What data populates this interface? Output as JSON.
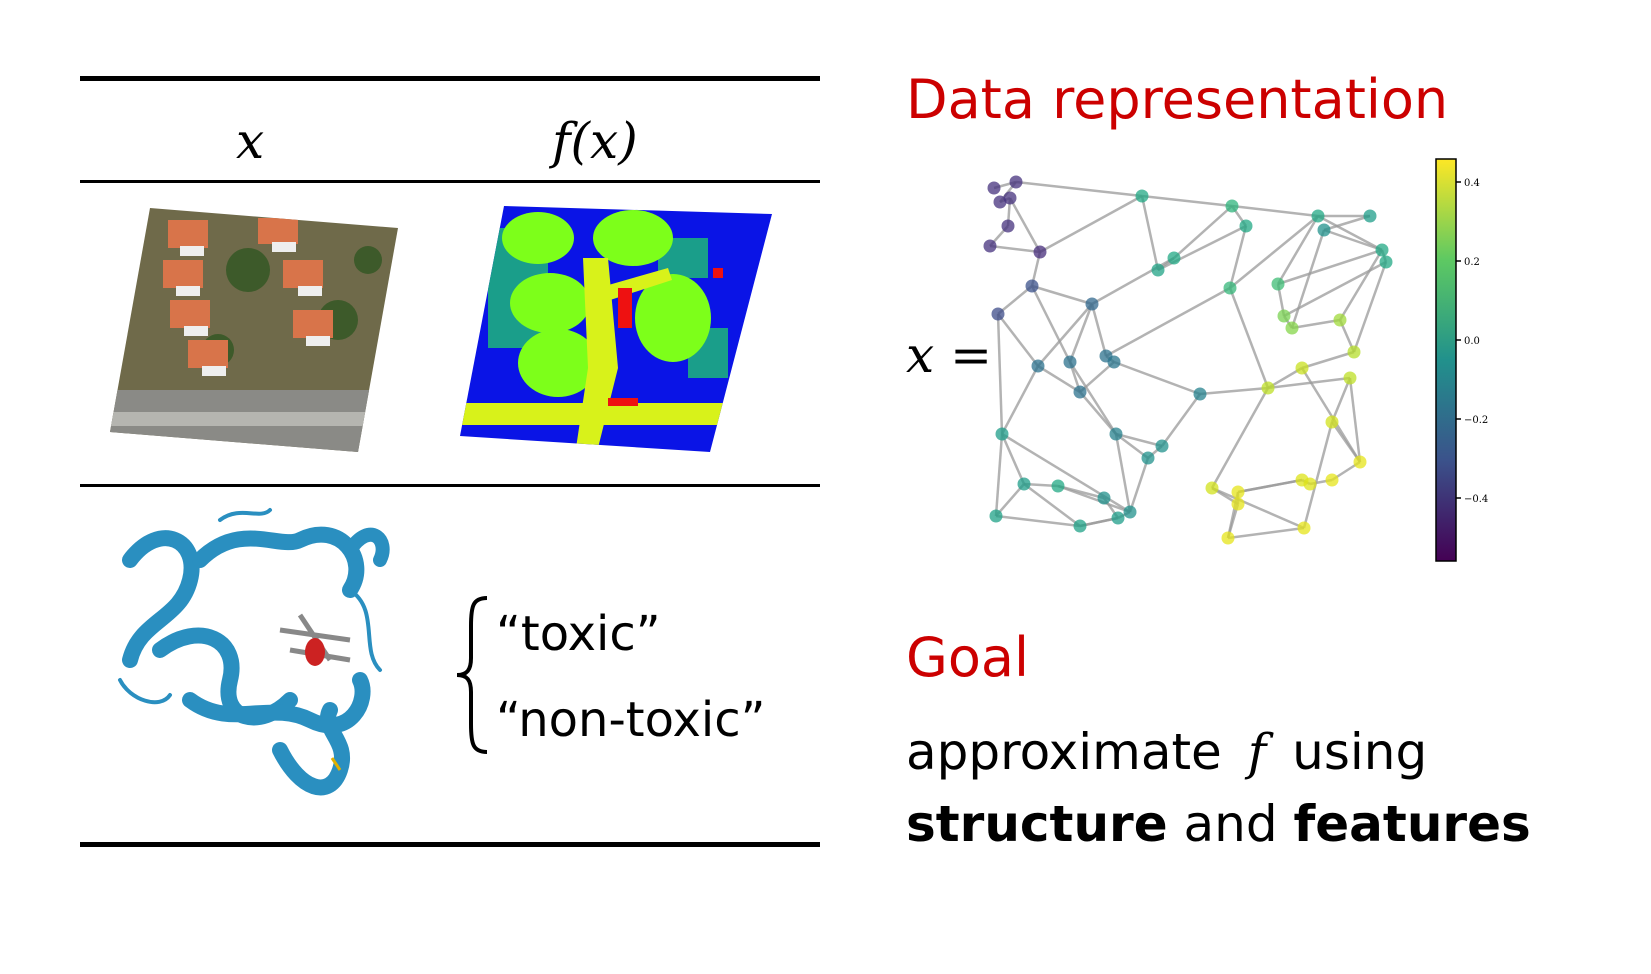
{
  "table": {
    "col_x": "x",
    "col_fx": "f(x)",
    "labels": [
      "“toxic”",
      "“non-toxic”"
    ]
  },
  "right": {
    "title1": "Data representation",
    "x_equals": "x =",
    "title2": "Goal",
    "goal_line1_a": "approximate",
    "goal_line1_f": "f",
    "goal_line1_b": "using",
    "goal_bold1": "structure",
    "goal_mid": "and",
    "goal_bold2": "features"
  },
  "colorbar": {
    "ticks": [
      "0.4",
      "0.2",
      "0.0",
      "−0.2",
      "−0.4"
    ]
  },
  "colors": {
    "accent_red": "#cc0000",
    "protein_blue": "#2a8fc0",
    "seg_blue": "#0a14e6",
    "seg_green": "#7dff1a",
    "seg_yellow": "#d8f21a",
    "seg_teal": "#1a9e8a"
  }
}
